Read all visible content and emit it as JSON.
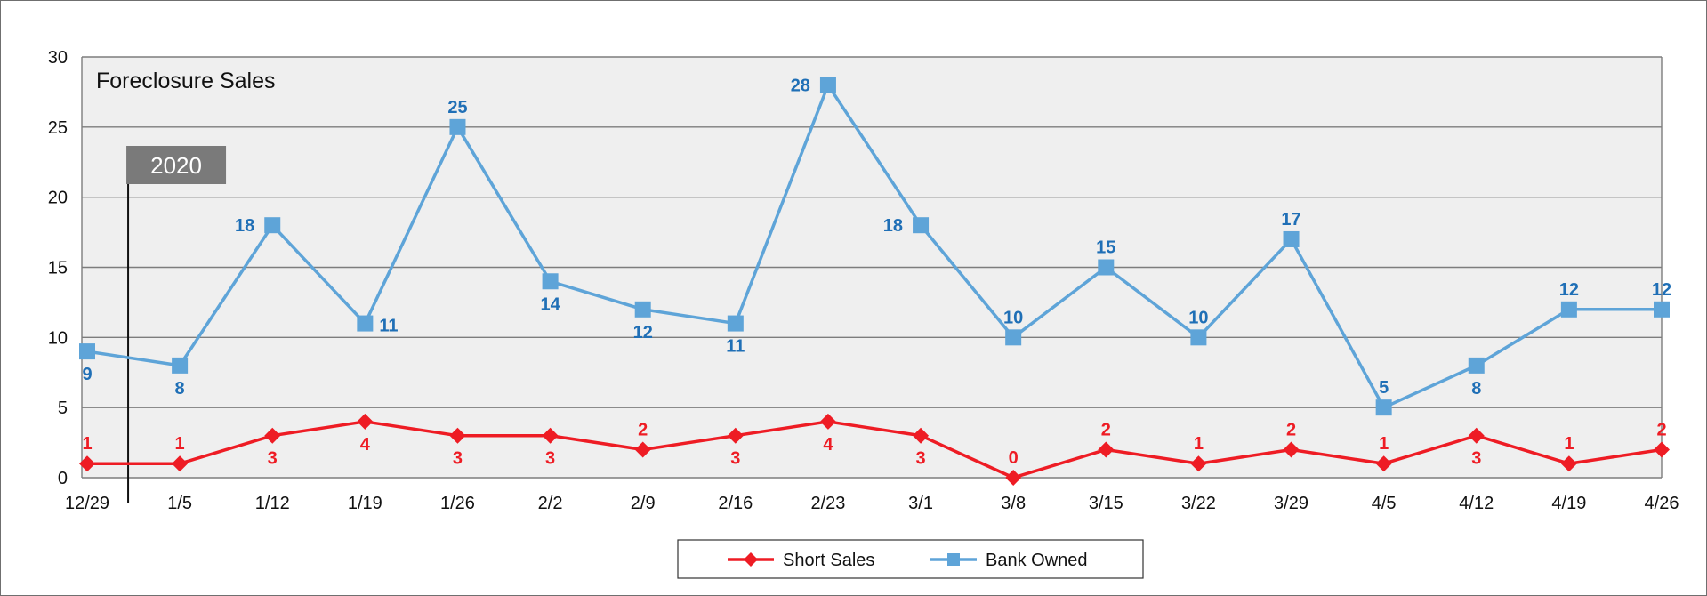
{
  "chart_data": {
    "type": "line",
    "title": "Foreclosure Sales",
    "xlabel": "",
    "ylabel": "",
    "ylim": [
      0,
      30
    ],
    "yticks": [
      0,
      5,
      10,
      15,
      20,
      25,
      30
    ],
    "grid": true,
    "legend_position": "bottom-center",
    "year_marker": {
      "label": "2020",
      "after_category": "12/29"
    },
    "categories": [
      "12/29",
      "1/5",
      "1/12",
      "1/19",
      "1/26",
      "2/2",
      "2/9",
      "2/16",
      "2/23",
      "3/1",
      "3/8",
      "3/15",
      "3/22",
      "3/29",
      "4/5",
      "4/12",
      "4/19",
      "4/26"
    ],
    "series": [
      {
        "name": "Short Sales",
        "color": "#ee1c24",
        "marker": "diamond",
        "values": [
          1,
          1,
          3,
          4,
          3,
          3,
          2,
          3,
          4,
          3,
          0,
          2,
          1,
          2,
          1,
          3,
          1,
          2
        ]
      },
      {
        "name": "Bank Owned",
        "color": "#5ea4d8",
        "label_color": "#1f6fb6",
        "marker": "square",
        "values": [
          9,
          8,
          18,
          11,
          25,
          14,
          12,
          11,
          28,
          18,
          10,
          15,
          10,
          17,
          5,
          8,
          12,
          12
        ]
      }
    ]
  }
}
